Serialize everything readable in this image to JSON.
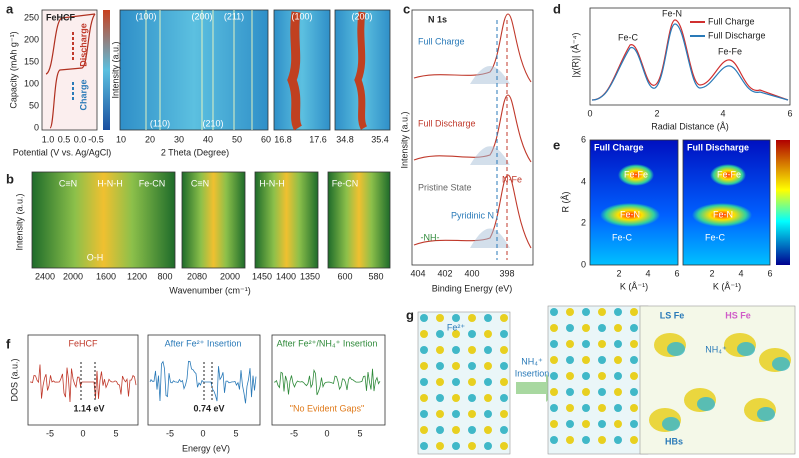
{
  "panel_a": {
    "label": "a",
    "title": "FeHCF",
    "y_axis_title": "Capacity (mAh g⁻¹)",
    "y_ticks": [
      "250",
      "200",
      "150",
      "100",
      "50",
      "0"
    ],
    "discharge": "Discharge",
    "charge": "Charge",
    "x_axis_title": "Potential (V vs. Ag/AgCl)",
    "x_ticks": [
      "1.0",
      "0.5",
      "0.0",
      "-0.5"
    ],
    "colorbar_title": "Intensity (a.u.)",
    "peaks_top": [
      "(100)",
      "(200)",
      "(211)"
    ],
    "peaks_bottom": [
      "(110)",
      "(210)"
    ],
    "xrd_x_ticks": [
      "10",
      "20",
      "30",
      "40",
      "50",
      "60"
    ],
    "xrd_x_title": "2 Theta (Degree)",
    "zoom_100_title": "(100)",
    "zoom_100_ticks": [
      "16.8",
      "17.6"
    ],
    "zoom_200_title": "(200)",
    "zoom_200_ticks": [
      "34.8",
      "35.4"
    ]
  },
  "panel_b": {
    "label": "b",
    "y_axis_title": "Intensity (a.u.)",
    "bands": [
      "C≡N",
      "H-N-H",
      "Fe-CN"
    ],
    "oh": "O-H",
    "x_ticks": [
      "2400",
      "2000",
      "1600",
      "1200",
      "800"
    ],
    "zoom_cn": "C≡N",
    "zoom_cn_ticks": [
      "2080",
      "2000"
    ],
    "zoom_hnh": "H-N-H",
    "zoom_hnh_ticks": [
      "1450",
      "1400",
      "1350"
    ],
    "zoom_fecn": "Fe-CN",
    "zoom_fecn_ticks": [
      "600",
      "580"
    ],
    "x_axis_title": "Wavenumber (cm⁻¹)"
  },
  "panel_c": {
    "label": "c",
    "title": "N 1s",
    "full_charge": "Full Charge",
    "full_discharge": "Full Discharge",
    "pristine": "Pristine State",
    "pyridinic": "Pyridinic N",
    "n_fe": "N-Fe",
    "nh": "-NH-",
    "y_axis_title": "Intensity (a.u.)",
    "x_ticks": [
      "404",
      "402",
      "400",
      "398"
    ],
    "x_axis_title": "Binding Energy (eV)"
  },
  "panel_d": {
    "label": "d",
    "y_axis_title": "|χ(R)| (Å⁻⁴)",
    "fe_c": "Fe-C",
    "fe_n": "Fe-N",
    "fe_fe": "Fe-Fe",
    "legend": [
      "Full Charge",
      "Full Discharge"
    ],
    "x_ticks": [
      "0",
      "2",
      "4",
      "6"
    ],
    "x_axis_title": "Radial Distance (Å)"
  },
  "panel_e": {
    "label": "e",
    "maps": [
      {
        "title": "Full Charge",
        "fe_fe": "Fe-Fe",
        "fe_n": "Fe-N",
        "fe_c": "Fe-C",
        "x_ticks": [
          "2",
          "4",
          "6"
        ],
        "x_axis_title": "K (Å⁻¹)"
      },
      {
        "title": "Full Discharge",
        "fe_fe": "Fe-Fe",
        "fe_n": "Fe-N",
        "fe_c": "Fe-C",
        "x_ticks": [
          "2",
          "4",
          "6"
        ],
        "x_axis_title": "K (Å⁻¹)"
      }
    ],
    "y_axis_title": "R (Å)",
    "y_ticks": [
      "0",
      "2",
      "4",
      "6"
    ]
  },
  "panel_f": {
    "label": "f",
    "y_axis_title": "DOS (a.u.)",
    "plots": [
      {
        "title": "FeHCF",
        "gap": "1.14 eV",
        "x_ticks": [
          "-5",
          "0",
          "5"
        ]
      },
      {
        "title": "After Fe²⁺ Insertion",
        "gap": "0.74 eV",
        "x_ticks": [
          "-5",
          "0",
          "5"
        ]
      },
      {
        "title": "After Fe²⁺/NH₄⁺ Insertion",
        "gap": "\"No Evident Gaps\"",
        "x_ticks": [
          "-5",
          "0",
          "5"
        ]
      }
    ],
    "x_axis_title": "Energy (eV)"
  },
  "panel_g": {
    "label": "g",
    "fe2": "Fe²⁺",
    "arrow_top": "NH₄⁺",
    "arrow_bottom": "Insertion",
    "ls_fe": "LS Fe",
    "hs_fe": "HS Fe",
    "nh4": "NH₄⁺",
    "hbs": "HBs"
  }
}
